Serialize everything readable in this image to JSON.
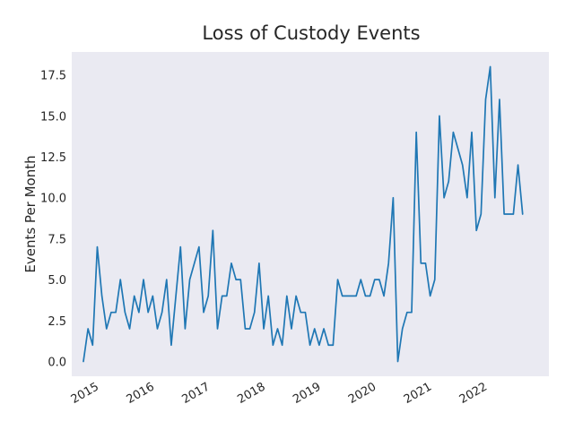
{
  "chart_data": {
    "type": "line",
    "title": "Loss of Custody Events",
    "xlabel": "",
    "ylabel": "Events Per Month",
    "ylim": [
      -0.9,
      18.9
    ],
    "xlim": [
      2014.5,
      2023.1
    ],
    "grid": false,
    "y_ticks": [
      0.0,
      2.5,
      5.0,
      7.5,
      10.0,
      12.5,
      15.0,
      17.5
    ],
    "y_tick_labels": [
      "0.0",
      "2.5",
      "5.0",
      "7.5",
      "10.0",
      "12.5",
      "15.0",
      "17.5"
    ],
    "x_ticks": [
      2015,
      2016,
      2017,
      2018,
      2019,
      2020,
      2021,
      2022
    ],
    "x_tick_labels": [
      "2015",
      "2016",
      "2017",
      "2018",
      "2019",
      "2020",
      "2021",
      "2022"
    ],
    "series": [
      {
        "name": "Events Per Month",
        "color": "#1f77b4",
        "start": 2014.71,
        "step_months": 1,
        "values": [
          0,
          2,
          1,
          7,
          4,
          2,
          3,
          3,
          5,
          3,
          2,
          4,
          3,
          5,
          3,
          4,
          2,
          3,
          5,
          1,
          4,
          7,
          2,
          5,
          6,
          7,
          3,
          4,
          8,
          2,
          4,
          4,
          6,
          5,
          5,
          2,
          2,
          3,
          6,
          2,
          4,
          1,
          2,
          1,
          4,
          2,
          4,
          3,
          3,
          1,
          2,
          1,
          2,
          1,
          1,
          5,
          4,
          4,
          4,
          4,
          5,
          4,
          4,
          5,
          5,
          4,
          6,
          10,
          0,
          2,
          3,
          3,
          14,
          6,
          6,
          4,
          5,
          15,
          10,
          11,
          14,
          13,
          12,
          10,
          14,
          8,
          9,
          16,
          18,
          10,
          16,
          9,
          9,
          9,
          12,
          9
        ]
      }
    ]
  }
}
